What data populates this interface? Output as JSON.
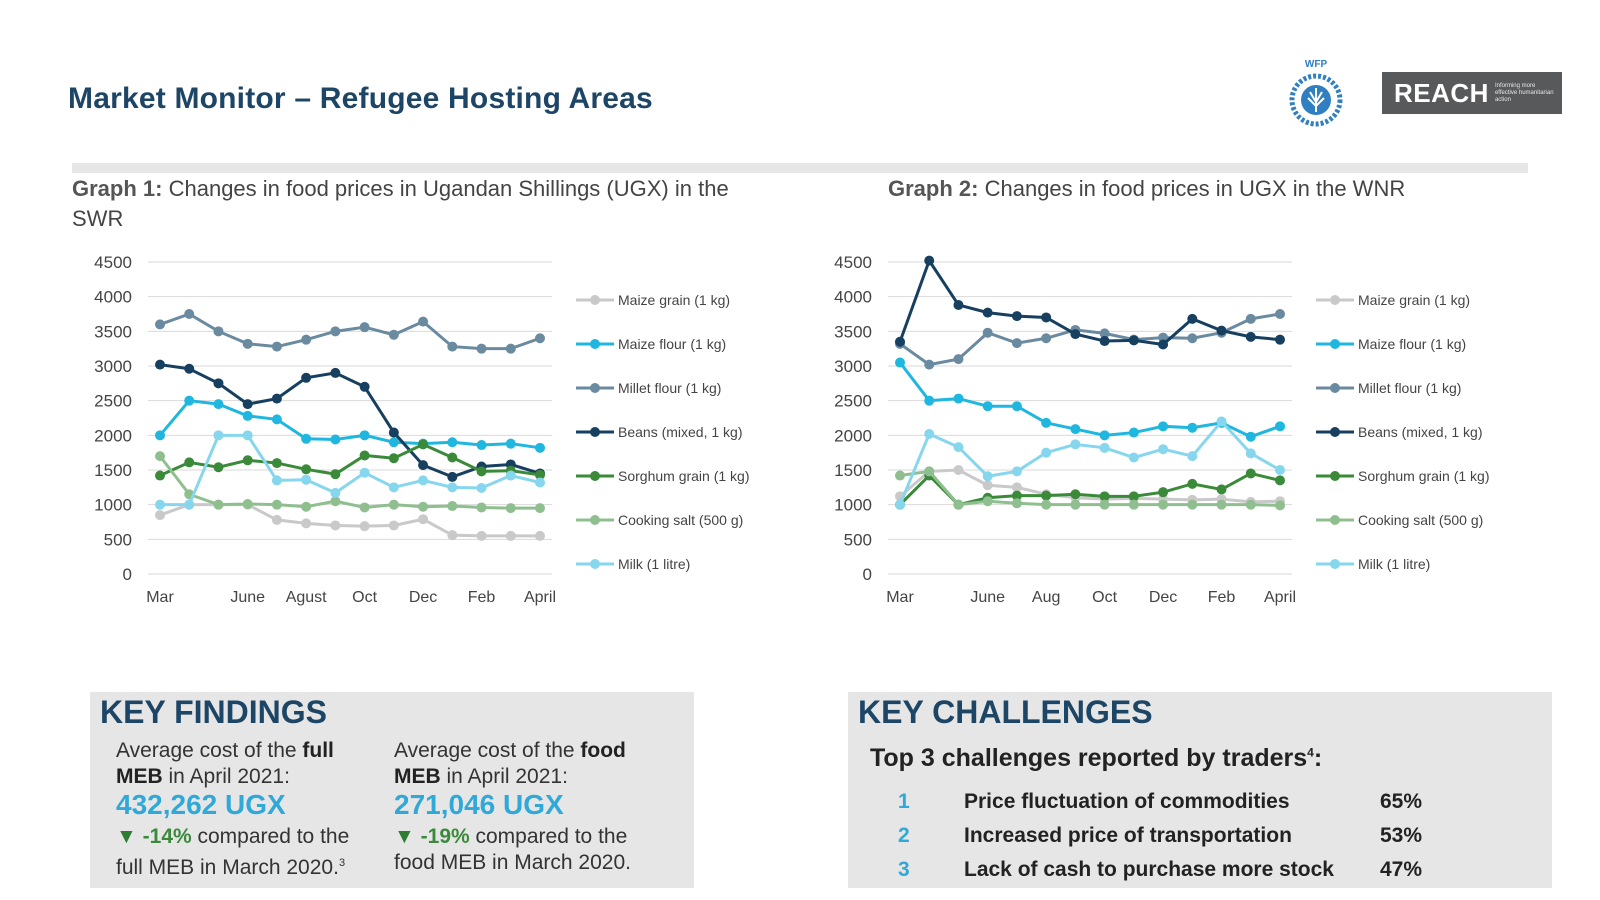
{
  "header": {
    "title": "Market Monitor – Refugee Hosting Areas",
    "wfp_logo_text": "WFP",
    "reach_logo_text": "REACH",
    "reach_tagline": "Informing more effective humanitarian action"
  },
  "graph1": {
    "label": "Graph 1:",
    "title_line1": "Changes in food prices in Ugandan Shillings (UGX) in the",
    "title_line2": "SWR"
  },
  "graph2": {
    "label": "Graph 2:",
    "title_line1": "Changes in food prices in UGX in the WNR"
  },
  "chart_data": [
    {
      "type": "line",
      "title": "Changes in food prices in Ugandan Shillings (UGX) in the SWR",
      "ylim": [
        0,
        4500
      ],
      "yticks": [
        "0",
        "500",
        "1000",
        "1500",
        "2000",
        "2500",
        "3000",
        "3500",
        "4000",
        "4500"
      ],
      "xticks": [
        "Mar",
        "June",
        "Agust",
        "Oct",
        "Dec",
        "Feb",
        "April"
      ],
      "xtick_positions": [
        0,
        3,
        5,
        7,
        9,
        11,
        13
      ],
      "x": [
        0,
        1,
        2,
        3,
        4,
        5,
        6,
        7,
        8,
        9,
        10,
        11,
        12,
        13
      ],
      "grid": true,
      "legend": "right",
      "series": [
        {
          "name": "Maize grain (1 kg)",
          "color": "#c9c9c9",
          "values": [
            850,
            1000,
            1000,
            1000,
            780,
            730,
            700,
            690,
            700,
            790,
            560,
            550,
            550,
            550
          ]
        },
        {
          "name": "Maize flour (1 kg)",
          "color": "#1fb7df",
          "values": [
            2000,
            2500,
            2450,
            2280,
            2230,
            1950,
            1940,
            2000,
            1900,
            1880,
            1900,
            1860,
            1880,
            1820
          ]
        },
        {
          "name": "Millet flour (1 kg)",
          "color": "#6a8aa0",
          "values": [
            3600,
            3750,
            3500,
            3320,
            3280,
            3380,
            3500,
            3560,
            3450,
            3640,
            3280,
            3250,
            3250,
            3400
          ]
        },
        {
          "name": "Beans (mixed, 1 kg)",
          "color": "#173f5f",
          "values": [
            3020,
            2960,
            2750,
            2450,
            2530,
            2830,
            2900,
            2700,
            2040,
            1570,
            1400,
            1550,
            1580,
            1450
          ]
        },
        {
          "name": "Sorghum grain (1 kg)",
          "color": "#3a8a3a",
          "values": [
            1420,
            1610,
            1540,
            1640,
            1600,
            1510,
            1440,
            1710,
            1670,
            1870,
            1680,
            1480,
            1490,
            1430
          ]
        },
        {
          "name": "Cooking salt (500 g)",
          "color": "#8fbf8f",
          "values": [
            1700,
            1150,
            1000,
            1010,
            1000,
            970,
            1050,
            960,
            1000,
            970,
            980,
            960,
            950,
            950
          ]
        },
        {
          "name": "Milk (1 litre)",
          "color": "#86d6ee",
          "values": [
            1000,
            1000,
            2000,
            2000,
            1350,
            1360,
            1170,
            1460,
            1250,
            1350,
            1250,
            1240,
            1420,
            1320
          ]
        }
      ]
    },
    {
      "type": "line",
      "title": "Changes in food prices in UGX in the WNR",
      "ylim": [
        0,
        4500
      ],
      "yticks": [
        "0",
        "500",
        "1000",
        "1500",
        "2000",
        "2500",
        "3000",
        "3500",
        "4000",
        "4500"
      ],
      "xticks": [
        "Mar",
        "June",
        "Aug",
        "Oct",
        "Dec",
        "Feb",
        "April"
      ],
      "xtick_positions": [
        0,
        3,
        5,
        7,
        9,
        11,
        13
      ],
      "x": [
        0,
        1,
        2,
        3,
        4,
        5,
        6,
        7,
        8,
        9,
        10,
        11,
        12,
        13
      ],
      "grid": true,
      "legend": "right",
      "series": [
        {
          "name": "Maize grain (1 kg)",
          "color": "#c9c9c9",
          "values": [
            1120,
            1480,
            1500,
            1280,
            1250,
            1150,
            1100,
            1080,
            1090,
            1080,
            1070,
            1080,
            1040,
            1050
          ]
        },
        {
          "name": "Maize flour (1 kg)",
          "color": "#1fb7df",
          "values": [
            3050,
            2500,
            2530,
            2420,
            2420,
            2180,
            2090,
            2000,
            2040,
            2130,
            2110,
            2180,
            1980,
            2130
          ]
        },
        {
          "name": "Millet flour (1 kg)",
          "color": "#6a8aa0",
          "values": [
            3320,
            3020,
            3100,
            3480,
            3330,
            3400,
            3520,
            3470,
            3380,
            3410,
            3400,
            3480,
            3680,
            3750
          ]
        },
        {
          "name": "Beans (mixed, 1 kg)",
          "color": "#173f5f",
          "values": [
            3350,
            4520,
            3880,
            3770,
            3720,
            3700,
            3460,
            3360,
            3370,
            3310,
            3680,
            3510,
            3420,
            3380
          ]
        },
        {
          "name": "Sorghum grain (1 kg)",
          "color": "#3a8a3a",
          "values": [
            1000,
            1420,
            1000,
            1100,
            1130,
            1130,
            1150,
            1120,
            1120,
            1180,
            1300,
            1220,
            1450,
            1350
          ]
        },
        {
          "name": "Cooking salt (500 g)",
          "color": "#8fbf8f",
          "values": [
            1420,
            1480,
            1000,
            1050,
            1020,
            1000,
            1000,
            1000,
            1000,
            1000,
            1000,
            1000,
            1000,
            990
          ]
        },
        {
          "name": "Milk (1 litre)",
          "color": "#86d6ee",
          "values": [
            1000,
            2020,
            1830,
            1410,
            1480,
            1750,
            1870,
            1820,
            1680,
            1800,
            1700,
            2200,
            1740,
            1500
          ]
        }
      ]
    }
  ],
  "key_findings": {
    "heading": "KEY FINDINGS",
    "col1_pre": "Average cost of the ",
    "col1_bold": "full",
    "col1_bold2": "MEB",
    "col1_post": " in April 2021:",
    "col1_value": "432,262 UGX",
    "col1_change_icon": "▼",
    "col1_change": "-14%",
    "col1_change_post": " compared to the",
    "col1_last": "full MEB in March 2020.",
    "col1_footnote": "3",
    "col2_pre": "Average cost of the ",
    "col2_bold": "food",
    "col2_bold2": "MEB",
    "col2_post": " in April 2021:",
    "col2_value": "271,046 UGX",
    "col2_change_icon": "▼",
    "col2_change": "-19%",
    "col2_change_post": " compared to the",
    "col2_last": "food MEB in March 2020."
  },
  "key_challenges": {
    "heading": "KEY CHALLENGES",
    "subheading": "Top 3 challenges reported by traders",
    "sub_footnote": "4",
    "sub_colon": ":",
    "items": [
      {
        "num": "1",
        "text": "Price fluctuation of commodities",
        "pct": "65%"
      },
      {
        "num": "2",
        "text": "Increased price of transportation",
        "pct": "53%"
      },
      {
        "num": "3",
        "text": "Lack of cash to purchase more stock",
        "pct": "47%"
      }
    ]
  }
}
